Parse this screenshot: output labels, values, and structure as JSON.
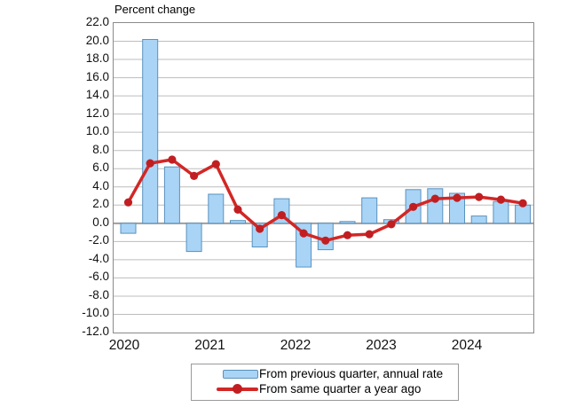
{
  "title": "Percent change",
  "y_axis": {
    "tick_labels": [
      "22.0",
      "20.0",
      "18.0",
      "16.0",
      "14.0",
      "12.0",
      "10.0",
      "8.0",
      "6.0",
      "4.0",
      "2.0",
      "0.0",
      "-2.0",
      "-4.0",
      "-6.0",
      "-8.0",
      "-10.0",
      "-12.0"
    ],
    "min": -12.0,
    "max": 22.0,
    "step": 2.0
  },
  "x_axis": {
    "years": [
      "2020",
      "2021",
      "2022",
      "2023",
      "2024"
    ]
  },
  "legend": {
    "items": [
      {
        "label": "From previous quarter, annual rate",
        "marker": "bar-swatch"
      },
      {
        "label": "From same quarter a year ago",
        "marker": "line-dot"
      }
    ]
  },
  "colors": {
    "bar_fill": "#A9D4F5",
    "bar_border": "#5A92BE",
    "line_red": "#D22726",
    "dot_red": "#C11E22",
    "gridline": "#BDBDBD",
    "zero_line": "#9E9E9E",
    "plot_border": "#8A8A8A"
  },
  "chart_data": {
    "type": "bar+line",
    "title": "Percent change",
    "categories": [
      "2020 Q1",
      "2020 Q2",
      "2020 Q3",
      "2020 Q4",
      "2021 Q1",
      "2021 Q2",
      "2021 Q3",
      "2021 Q4",
      "2022 Q1",
      "2022 Q2",
      "2022 Q3",
      "2022 Q4",
      "2023 Q1",
      "2023 Q2",
      "2023 Q3",
      "2023 Q4",
      "2024 Q1",
      "2024 Q2",
      "2024 Q3"
    ],
    "series": [
      {
        "name": "From previous quarter, annual rate",
        "type": "bar",
        "values": [
          -1.1,
          20.2,
          6.2,
          -3.1,
          3.2,
          0.3,
          -2.6,
          2.7,
          -4.8,
          -2.9,
          0.2,
          2.8,
          0.4,
          3.7,
          3.8,
          3.3,
          0.8,
          2.4,
          2.0
        ]
      },
      {
        "name": "From same quarter a year ago",
        "type": "line",
        "values": [
          2.3,
          6.6,
          7.0,
          5.2,
          6.5,
          1.5,
          -0.6,
          0.9,
          -1.1,
          -1.9,
          -1.3,
          -1.2,
          -0.1,
          1.8,
          2.7,
          2.8,
          2.9,
          2.6,
          2.2
        ]
      }
    ],
    "ylabel": "Percent change",
    "xlabel": "",
    "ylim": [
      -12.0,
      22.0
    ],
    "y_step": 2.0,
    "grid": true,
    "legend_position": "bottom"
  }
}
